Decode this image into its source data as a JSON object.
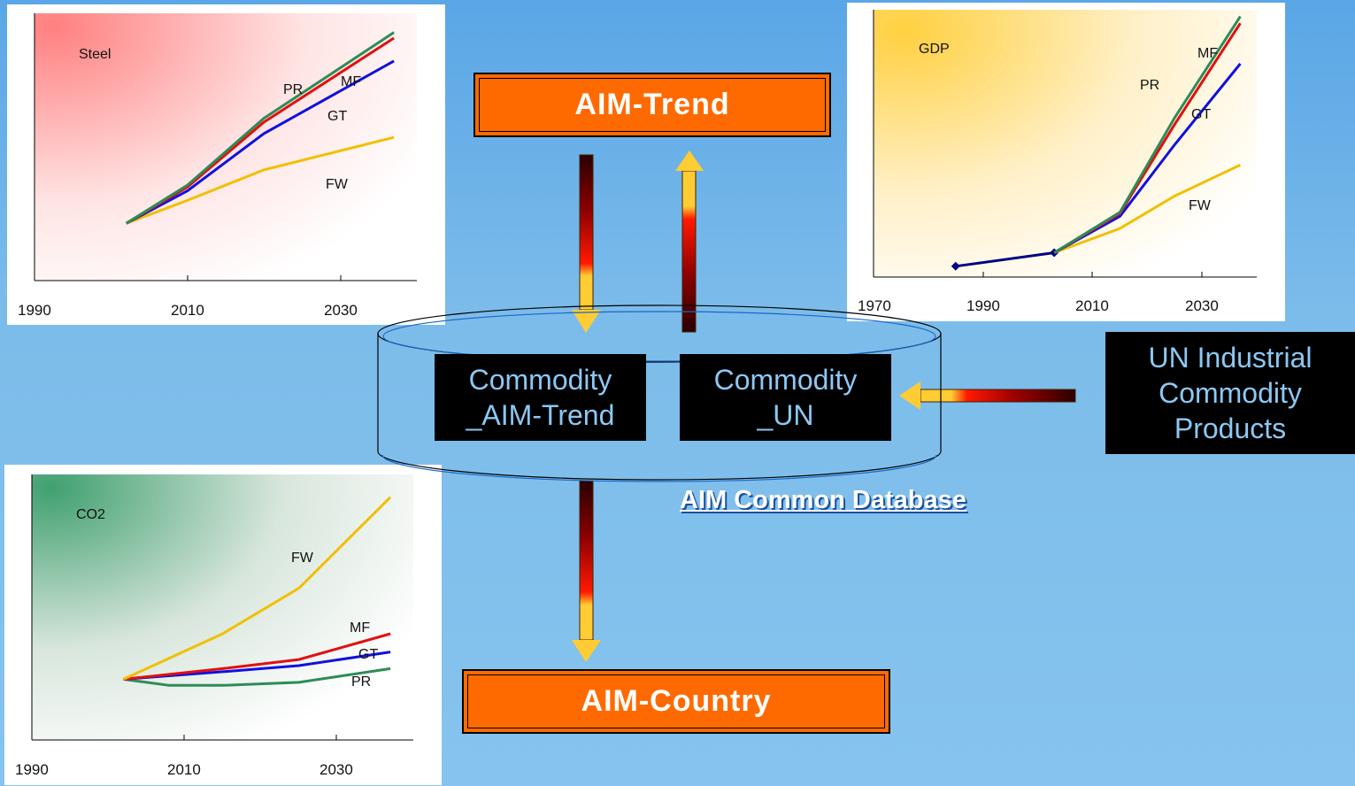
{
  "boxes": {
    "aim_trend": "AIM-Trend",
    "aim_country": "AIM-Country",
    "commodity_aim_trend": [
      "Commodity",
      "_AIM-Trend"
    ],
    "commodity_un": [
      "Commodity",
      "_UN"
    ],
    "un_products": [
      "UN Industrial",
      "Commodity",
      "Products"
    ],
    "database_label": "AIM Common Database"
  },
  "chart_data": [
    {
      "type": "line",
      "title": "Steel",
      "x_ticks": [
        "1990",
        "2010",
        "2030"
      ],
      "series": [
        {
          "name": "PR",
          "color": "#2e8b57",
          "x": [
            1997,
            2005,
            2015,
            2032
          ],
          "y": [
            0,
            20,
            55,
            100
          ]
        },
        {
          "name": "MF",
          "color": "#e01010",
          "x": [
            1997,
            2005,
            2015,
            2032
          ],
          "y": [
            0,
            19,
            53,
            97
          ]
        },
        {
          "name": "GT",
          "color": "#1010e0",
          "x": [
            1997,
            2005,
            2015,
            2032
          ],
          "y": [
            0,
            17,
            47,
            85
          ]
        },
        {
          "name": "FW",
          "color": "#f0c000",
          "x": [
            1997,
            2005,
            2015,
            2032
          ],
          "y": [
            0,
            12,
            28,
            45
          ]
        }
      ]
    },
    {
      "type": "line",
      "title": "GDP",
      "x_ticks": [
        "1970",
        "1990",
        "2010",
        "2030"
      ],
      "series": [
        {
          "name": "PR",
          "color": "#2e8b57",
          "x": [
            1998,
            2010,
            2020,
            2032
          ],
          "y": [
            10,
            40,
            110,
            185
          ]
        },
        {
          "name": "MF",
          "color": "#e01010",
          "x": [
            1998,
            2010,
            2020,
            2032
          ],
          "y": [
            10,
            39,
            105,
            180
          ]
        },
        {
          "name": "GT",
          "color": "#1010e0",
          "x": [
            1998,
            2010,
            2020,
            2032
          ],
          "y": [
            10,
            37,
            90,
            150
          ]
        },
        {
          "name": "FW",
          "color": "#f0c000",
          "x": [
            1998,
            2010,
            2020,
            2032
          ],
          "y": [
            10,
            28,
            52,
            75
          ]
        },
        {
          "name": "",
          "color": "#000080",
          "x": [
            1980,
            1998
          ],
          "y": [
            0,
            10
          ],
          "markers": true
        }
      ]
    },
    {
      "type": "line",
      "title": "CO2",
      "x_ticks": [
        "1990",
        "2010",
        "2030"
      ],
      "series": [
        {
          "name": "FW",
          "color": "#f0c000",
          "x": [
            1997,
            2010,
            2020,
            2032
          ],
          "y": [
            0,
            30,
            60,
            120
          ]
        },
        {
          "name": "MF",
          "color": "#e01010",
          "x": [
            1997,
            2010,
            2020,
            2032
          ],
          "y": [
            0,
            7,
            13,
            30
          ]
        },
        {
          "name": "GT",
          "color": "#1010e0",
          "x": [
            1997,
            2010,
            2020,
            2032
          ],
          "y": [
            0,
            5,
            9,
            18
          ]
        },
        {
          "name": "PR",
          "color": "#2e8b57",
          "x": [
            1997,
            2003,
            2010,
            2020,
            2032
          ],
          "y": [
            0,
            -4,
            -4,
            -2,
            7
          ]
        }
      ]
    }
  ]
}
